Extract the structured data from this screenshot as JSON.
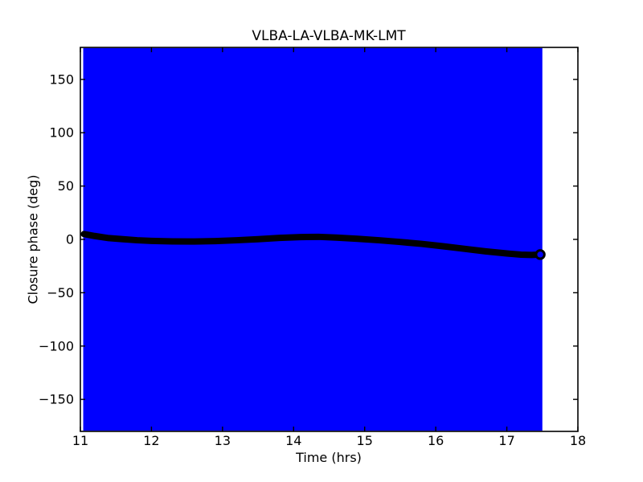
{
  "figure": {
    "title": "VLBA-LA-VLBA-MK-LMT",
    "xlabel": "Time (hrs)",
    "ylabel": "Closure phase (deg)"
  },
  "chart_data": {
    "type": "line",
    "title": "VLBA-LA-VLBA-MK-LMT",
    "xlabel": "Time (hrs)",
    "ylabel": "Closure phase (deg)",
    "xlim": [
      11,
      18
    ],
    "ylim": [
      -180,
      180
    ],
    "grid": false,
    "legend": null,
    "xticks": {
      "values": [
        11,
        12,
        13,
        14,
        15,
        16,
        17,
        18
      ],
      "labels": [
        "11",
        "12",
        "13",
        "14",
        "15",
        "16",
        "17",
        "18"
      ]
    },
    "yticks": {
      "values": [
        -150,
        -100,
        -50,
        0,
        50,
        100,
        150
      ],
      "labels": [
        "−150",
        "−100",
        "−50",
        "0",
        "50",
        "100",
        "150"
      ]
    },
    "error_band": {
      "color": "#0000ff",
      "x_range": [
        11.04,
        17.5
      ],
      "y_range": [
        -180,
        180
      ]
    },
    "series": [
      {
        "name": "closure-phase",
        "color": "#000000",
        "marker": "o",
        "line_width": 8,
        "x": [
          11.05,
          11.2,
          11.4,
          11.6,
          11.8,
          12.0,
          12.3,
          12.6,
          12.9,
          13.2,
          13.5,
          13.8,
          14.1,
          14.35,
          14.6,
          14.9,
          15.2,
          15.5,
          15.8,
          16.1,
          16.4,
          16.7,
          17.0,
          17.2,
          17.35,
          17.47
        ],
        "y": [
          5.0,
          3.2,
          1.2,
          0.2,
          -0.8,
          -1.4,
          -1.9,
          -2.0,
          -1.6,
          -0.8,
          0.2,
          1.4,
          2.2,
          2.4,
          1.7,
          0.6,
          -0.8,
          -2.4,
          -4.2,
          -6.4,
          -8.8,
          -11.2,
          -13.2,
          -14.3,
          -14.6,
          -14.2
        ]
      }
    ],
    "end_marker": {
      "x": 17.47,
      "y": -14.2,
      "face_color": "#0000ff",
      "edge_color": "#000000"
    }
  }
}
